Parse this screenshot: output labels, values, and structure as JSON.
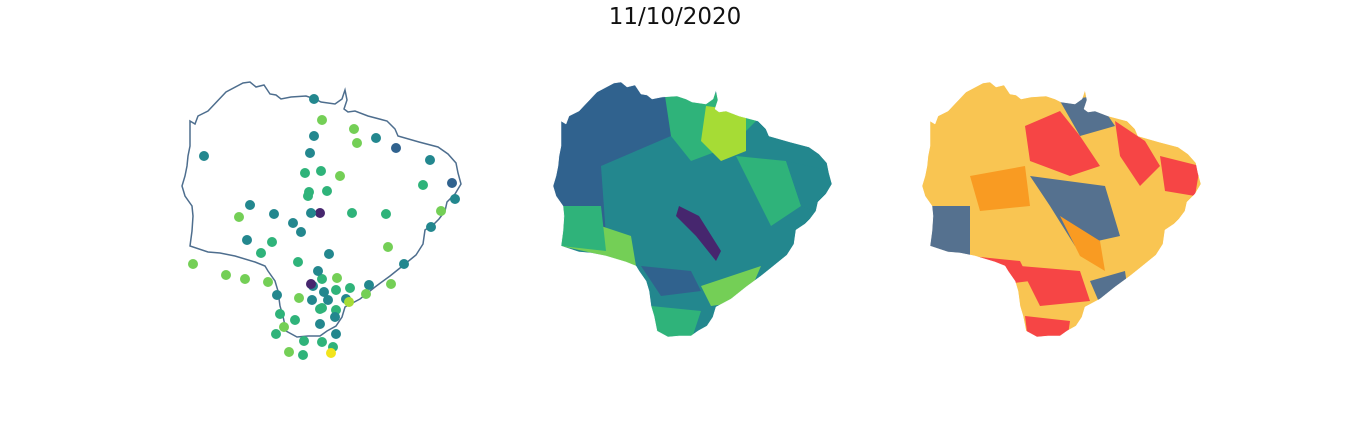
{
  "title": "11/10/2020",
  "colors": {
    "outline": "#4e6e8e",
    "viridis_dark": "#46266e",
    "viridis_blue": "#30628e",
    "viridis_teal": "#23878e",
    "viridis_green": "#2fb37a",
    "viridis_lightgreen": "#74cf56",
    "viridis_yellowgreen": "#a6dc35",
    "viridis_yellow": "#f2e41c",
    "cat_gray": "#55718f",
    "cat_yellow": "#f9c552",
    "cat_orange": "#f99b22",
    "cat_red": "#f64545"
  },
  "panels": [
    {
      "name": "points-map",
      "kind": "scatter-on-outline"
    },
    {
      "name": "choropleth-continuous",
      "kind": "choropleth-viridis"
    },
    {
      "name": "choropleth-categorical",
      "kind": "choropleth-categorical"
    }
  ]
}
